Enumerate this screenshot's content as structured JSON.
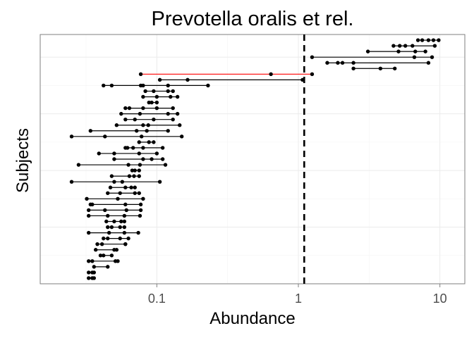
{
  "chart_data": {
    "type": "scatter",
    "title": "Prevotella oralis et rel.",
    "xlabel": "Abundance",
    "ylabel": "Subjects",
    "x_scale": "log10",
    "xlim": [
      0.015,
      15
    ],
    "x_ticks": [
      0.1,
      1,
      10
    ],
    "x_tick_labels": [
      "0.1",
      "1",
      "10"
    ],
    "ylim": [
      0,
      44
    ],
    "grid": true,
    "reference_line_x": 1.1,
    "colors": {
      "subject_line": "#000000",
      "highlight_line": "#ff0000",
      "point": "#000000",
      "reference_line": "#000000"
    },
    "subjects": [
      {
        "y": 43,
        "values": [
          7.0,
          7.5,
          8.3,
          9.0,
          9.8
        ]
      },
      {
        "y": 42,
        "values": [
          4.7,
          5.2,
          5.7,
          6.4,
          9.2
        ]
      },
      {
        "y": 41,
        "values": [
          3.1,
          5.1,
          6.7,
          7.9
        ]
      },
      {
        "y": 40,
        "values": [
          1.25,
          6.6,
          8.8
        ]
      },
      {
        "y": 39,
        "values": [
          1.6,
          1.9,
          2.05,
          2.45,
          8.3
        ]
      },
      {
        "y": 38,
        "values": [
          2.45,
          3.8,
          4.8
        ]
      },
      {
        "y": 37,
        "values": [
          0.077,
          0.64,
          1.25
        ],
        "highlight": true
      },
      {
        "y": 36,
        "values": [
          0.105,
          0.165,
          1.07
        ]
      },
      {
        "y": 35,
        "values": [
          0.042,
          0.048,
          0.077,
          0.08,
          0.12,
          0.23
        ]
      },
      {
        "y": 34,
        "values": [
          0.083,
          0.095,
          0.12,
          0.13
        ]
      },
      {
        "y": 33,
        "values": [
          0.08,
          0.1,
          0.125,
          0.14
        ]
      },
      {
        "y": 32,
        "values": [
          0.088,
          0.092,
          0.1
        ]
      },
      {
        "y": 31,
        "values": [
          0.06,
          0.064,
          0.08,
          0.1,
          0.13
        ]
      },
      {
        "y": 30,
        "values": [
          0.056,
          0.076,
          0.12,
          0.14
        ]
      },
      {
        "y": 29,
        "values": [
          0.06,
          0.07,
          0.095,
          0.13
        ]
      },
      {
        "y": 28,
        "values": [
          0.052,
          0.08,
          0.087,
          0.145
        ]
      },
      {
        "y": 27,
        "values": [
          0.034,
          0.072,
          0.085,
          0.12
        ]
      },
      {
        "y": 26,
        "values": [
          0.025,
          0.043,
          0.078,
          0.15
        ]
      },
      {
        "y": 25,
        "values": [
          0.075,
          0.088,
          0.095
        ]
      },
      {
        "y": 24,
        "values": [
          0.06,
          0.062,
          0.068,
          0.08,
          0.11
        ]
      },
      {
        "y": 23,
        "values": [
          0.039,
          0.05,
          0.075,
          0.1
        ]
      },
      {
        "y": 22,
        "values": [
          0.05,
          0.08,
          0.092,
          0.11
        ]
      },
      {
        "y": 21,
        "values": [
          0.028,
          0.063,
          0.076,
          0.115
        ]
      },
      {
        "y": 20,
        "values": [
          0.067,
          0.07,
          0.075
        ]
      },
      {
        "y": 19,
        "values": [
          0.048,
          0.064,
          0.069,
          0.075
        ]
      },
      {
        "y": 18,
        "values": [
          0.025,
          0.05,
          0.057,
          0.105
        ]
      },
      {
        "y": 17,
        "values": [
          0.047,
          0.06,
          0.066,
          0.07
        ]
      },
      {
        "y": 16,
        "values": [
          0.045,
          0.055,
          0.07,
          0.075
        ]
      },
      {
        "y": 15,
        "values": [
          0.032,
          0.053,
          0.08
        ]
      },
      {
        "y": 14,
        "values": [
          0.034,
          0.035,
          0.06,
          0.077
        ]
      },
      {
        "y": 13,
        "values": [
          0.033,
          0.043,
          0.061,
          0.077
        ]
      },
      {
        "y": 12,
        "values": [
          0.033,
          0.045,
          0.059,
          0.076
        ]
      },
      {
        "y": 11,
        "values": [
          0.044,
          0.05,
          0.056,
          0.059
        ]
      },
      {
        "y": 10,
        "values": [
          0.045,
          0.048,
          0.055,
          0.059
        ]
      },
      {
        "y": 9,
        "values": [
          0.033,
          0.046,
          0.059,
          0.074
        ]
      },
      {
        "y": 8,
        "values": [
          0.042,
          0.045,
          0.055,
          0.063
        ]
      },
      {
        "y": 7,
        "values": [
          0.038,
          0.041,
          0.06,
          0.06
        ]
      },
      {
        "y": 6,
        "values": [
          0.037,
          0.05,
          0.052
        ]
      },
      {
        "y": 5,
        "values": [
          0.04,
          0.042,
          0.048
        ]
      },
      {
        "y": 4,
        "values": [
          0.033,
          0.035,
          0.051,
          0.053
        ]
      },
      {
        "y": 3,
        "values": [
          0.036,
          0.045
        ]
      },
      {
        "y": 2,
        "values": [
          0.033,
          0.035,
          0.036
        ]
      },
      {
        "y": 1,
        "values": [
          0.033,
          0.035,
          0.036
        ]
      }
    ]
  }
}
